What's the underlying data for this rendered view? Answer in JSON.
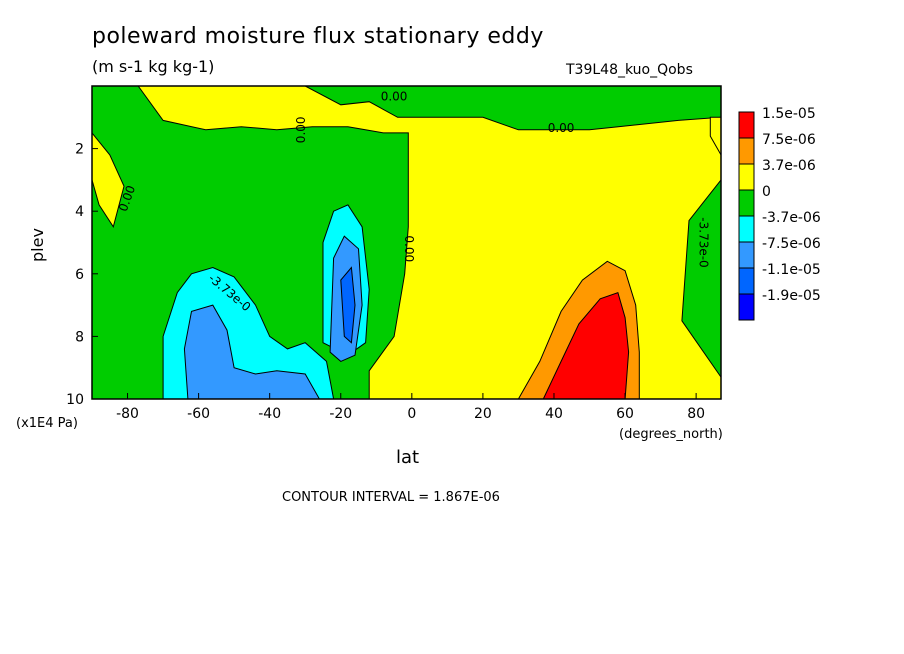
{
  "header": {
    "title": "poleward moisture flux stationary eddy",
    "units": "(m s-1 kg kg-1)",
    "dataset": "T39L48_kuo_Qobs"
  },
  "footer": {
    "contour_interval": "CONTOUR INTERVAL = 1.867E-06"
  },
  "chart_data": {
    "type": "heatmap",
    "title": "poleward moisture flux stationary eddy",
    "subtitle": "(m s-1 kg kg-1)",
    "xlabel": "lat",
    "x_units": "(degrees_north)",
    "ylabel": "plev",
    "y_units": "(x1E4 Pa)",
    "xlim": [
      -90,
      87
    ],
    "ylim": [
      0,
      10
    ],
    "y_inverted": true,
    "x_ticks": [
      -80,
      -60,
      -40,
      -20,
      0,
      20,
      40,
      60,
      80
    ],
    "y_ticks": [
      2,
      4,
      6,
      8,
      10
    ],
    "legend": {
      "placement": "right",
      "labels": [
        "1.5e-05",
        "7.5e-06",
        "3.7e-06",
        "0",
        "-3.7e-06",
        "-7.5e-06",
        "-1.1e-05",
        "-1.9e-05"
      ],
      "colors": [
        "#ff0000",
        "#ff9900",
        "#ffff00",
        "#00cc00",
        "#00ffff",
        "#3399ff",
        "#0066ff",
        "#0000ff"
      ]
    },
    "contour_labels": [
      "0.00",
      "0.00",
      "0.00",
      "0.00",
      "0.00",
      "-3.73e-0"
    ],
    "background_color": "#00cc00",
    "regions": [
      {
        "name": "positive-region",
        "color": "#ffff00",
        "polygon": [
          [
            -77,
            0
          ],
          [
            -30,
            0
          ],
          [
            -20,
            0.6
          ],
          [
            -12,
            0.5
          ],
          [
            -4,
            1
          ],
          [
            20,
            1
          ],
          [
            30,
            1.4
          ],
          [
            50,
            1.4
          ],
          [
            75,
            1.1
          ],
          [
            87,
            1
          ],
          [
            87,
            3
          ],
          [
            78,
            4.3
          ],
          [
            76,
            7.5
          ],
          [
            87,
            9.3
          ],
          [
            87,
            10
          ],
          [
            -12,
            10
          ],
          [
            -12,
            9.1
          ],
          [
            -5,
            8
          ],
          [
            -2,
            6
          ],
          [
            -1,
            4.5
          ],
          [
            -1,
            1.5
          ],
          [
            -8,
            1.5
          ],
          [
            -18,
            1.3
          ],
          [
            -28,
            1.3
          ],
          [
            -38,
            1.4
          ],
          [
            -48,
            1.3
          ],
          [
            -58,
            1.4
          ],
          [
            -70,
            1.1
          ]
        ]
      },
      {
        "name": "positive-region-nw",
        "color": "#ffff00",
        "polygon": [
          [
            -90,
            1.5
          ],
          [
            -85,
            2.2
          ],
          [
            -81,
            3.2
          ],
          [
            -84,
            4.5
          ],
          [
            -88,
            3.8
          ],
          [
            -90,
            3
          ]
        ]
      },
      {
        "name": "positive-region-ne",
        "color": "#ffff00",
        "polygon": [
          [
            84,
            1
          ],
          [
            87,
            1
          ],
          [
            87,
            2.2
          ],
          [
            84,
            1.6
          ]
        ]
      },
      {
        "name": "positive-moderate",
        "color": "#ff9900",
        "polygon": [
          [
            30,
            10
          ],
          [
            36,
            8.8
          ],
          [
            42,
            7.2
          ],
          [
            48,
            6.2
          ],
          [
            55,
            5.6
          ],
          [
            60,
            5.9
          ],
          [
            63,
            7
          ],
          [
            64,
            8.5
          ],
          [
            64,
            10
          ]
        ]
      },
      {
        "name": "positive-strong",
        "color": "#ff0000",
        "polygon": [
          [
            37,
            10
          ],
          [
            42,
            8.8
          ],
          [
            47,
            7.6
          ],
          [
            53,
            6.8
          ],
          [
            58,
            6.6
          ],
          [
            60,
            7.4
          ],
          [
            61,
            8.5
          ],
          [
            60,
            10
          ]
        ]
      },
      {
        "name": "negative-weak-south",
        "color": "#00ffff",
        "polygon": [
          [
            -70,
            10
          ],
          [
            -70,
            8
          ],
          [
            -66,
            6.6
          ],
          [
            -62,
            6
          ],
          [
            -56,
            5.8
          ],
          [
            -50,
            6.1
          ],
          [
            -44,
            7
          ],
          [
            -40,
            8
          ],
          [
            -35,
            8.4
          ],
          [
            -30,
            8.2
          ],
          [
            -24,
            8.8
          ],
          [
            -22,
            10
          ]
        ]
      },
      {
        "name": "negative-weak-center",
        "color": "#00ffff",
        "polygon": [
          [
            -25,
            8.2
          ],
          [
            -25,
            5
          ],
          [
            -22,
            4
          ],
          [
            -18,
            3.8
          ],
          [
            -14,
            4.5
          ],
          [
            -12,
            6.5
          ],
          [
            -13,
            8.2
          ],
          [
            -18,
            8.6
          ]
        ]
      },
      {
        "name": "negative-moderate-south",
        "color": "#3399ff",
        "polygon": [
          [
            -63,
            10
          ],
          [
            -64,
            8.4
          ],
          [
            -62,
            7.2
          ],
          [
            -56,
            7
          ],
          [
            -52,
            7.8
          ],
          [
            -50,
            9
          ],
          [
            -44,
            9.2
          ],
          [
            -38,
            9.1
          ],
          [
            -30,
            9.2
          ],
          [
            -26,
            10
          ]
        ]
      },
      {
        "name": "negative-moderate-center",
        "color": "#3399ff",
        "polygon": [
          [
            -23,
            8.5
          ],
          [
            -22,
            5.5
          ],
          [
            -19,
            4.8
          ],
          [
            -15,
            5.2
          ],
          [
            -14,
            7
          ],
          [
            -16,
            8.6
          ],
          [
            -20,
            8.8
          ]
        ]
      },
      {
        "name": "negative-strong-center",
        "color": "#0066ff",
        "polygon": [
          [
            -19,
            8
          ],
          [
            -20,
            6.2
          ],
          [
            -17,
            5.8
          ],
          [
            -16,
            7
          ],
          [
            -17,
            8.2
          ]
        ]
      }
    ]
  }
}
